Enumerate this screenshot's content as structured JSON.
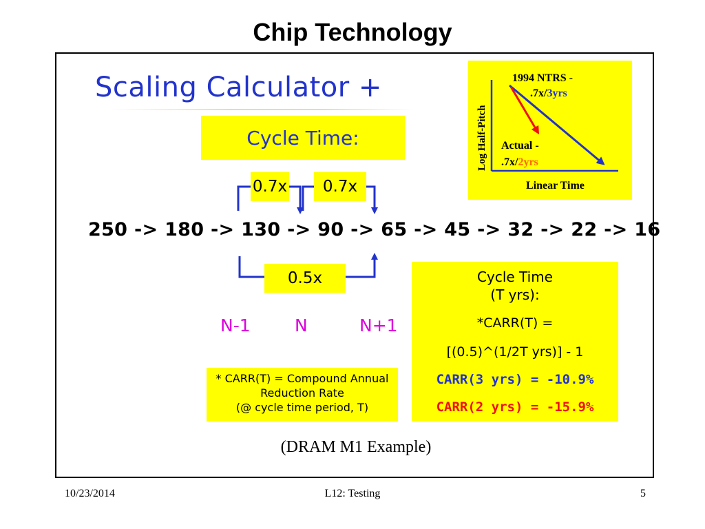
{
  "slide": {
    "title": "Chip Technology",
    "heading": "Scaling Calculator +",
    "cycle_time_label": "Cycle Time:",
    "factor_left": "0.7x",
    "factor_right": "0.7x",
    "factor_bottom": "0.5x",
    "sequence": "250 -> 180 -> 130 -> 90 -> 65 -> 45 -> 32 -> 22 -> 16",
    "node_labels": {
      "prev": "N-1",
      "current": "N",
      "next": "N+1"
    },
    "carr_note": {
      "line1": "* CARR(T) = Compound Annual",
      "line2": "Reduction Rate",
      "line3": "(@ cycle time period, T)"
    },
    "formula": {
      "title1": "Cycle Time",
      "title2": "(T yrs):",
      "carr_def": "*CARR(T) =",
      "expression": "[(0.5)^(1/2T yrs)] - 1",
      "carr3": "CARR(3 yrs) = -10.9%",
      "carr2": "CARR(2 yrs) = -15.9%"
    },
    "ntrs_chart": {
      "y_label": "Log Half-Pitch",
      "x_label": "Linear Time",
      "ntrs_line1": "1994 NTRS -",
      "ntrs_rate": ".7x/",
      "ntrs_period": "3yrs",
      "actual_line1": "Actual -",
      "actual_rate": ".7x/",
      "actual_period": "2yrs"
    },
    "caption": "(DRAM M1 Example)"
  },
  "footer": {
    "date": "10/23/2014",
    "lecture": "L12: Testing",
    "page": "5"
  },
  "colors": {
    "highlight": "#ffff00",
    "blue": "#2233cc",
    "red": "#ee1111",
    "magenta": "#dd00dd",
    "orange": "#ff6600"
  }
}
